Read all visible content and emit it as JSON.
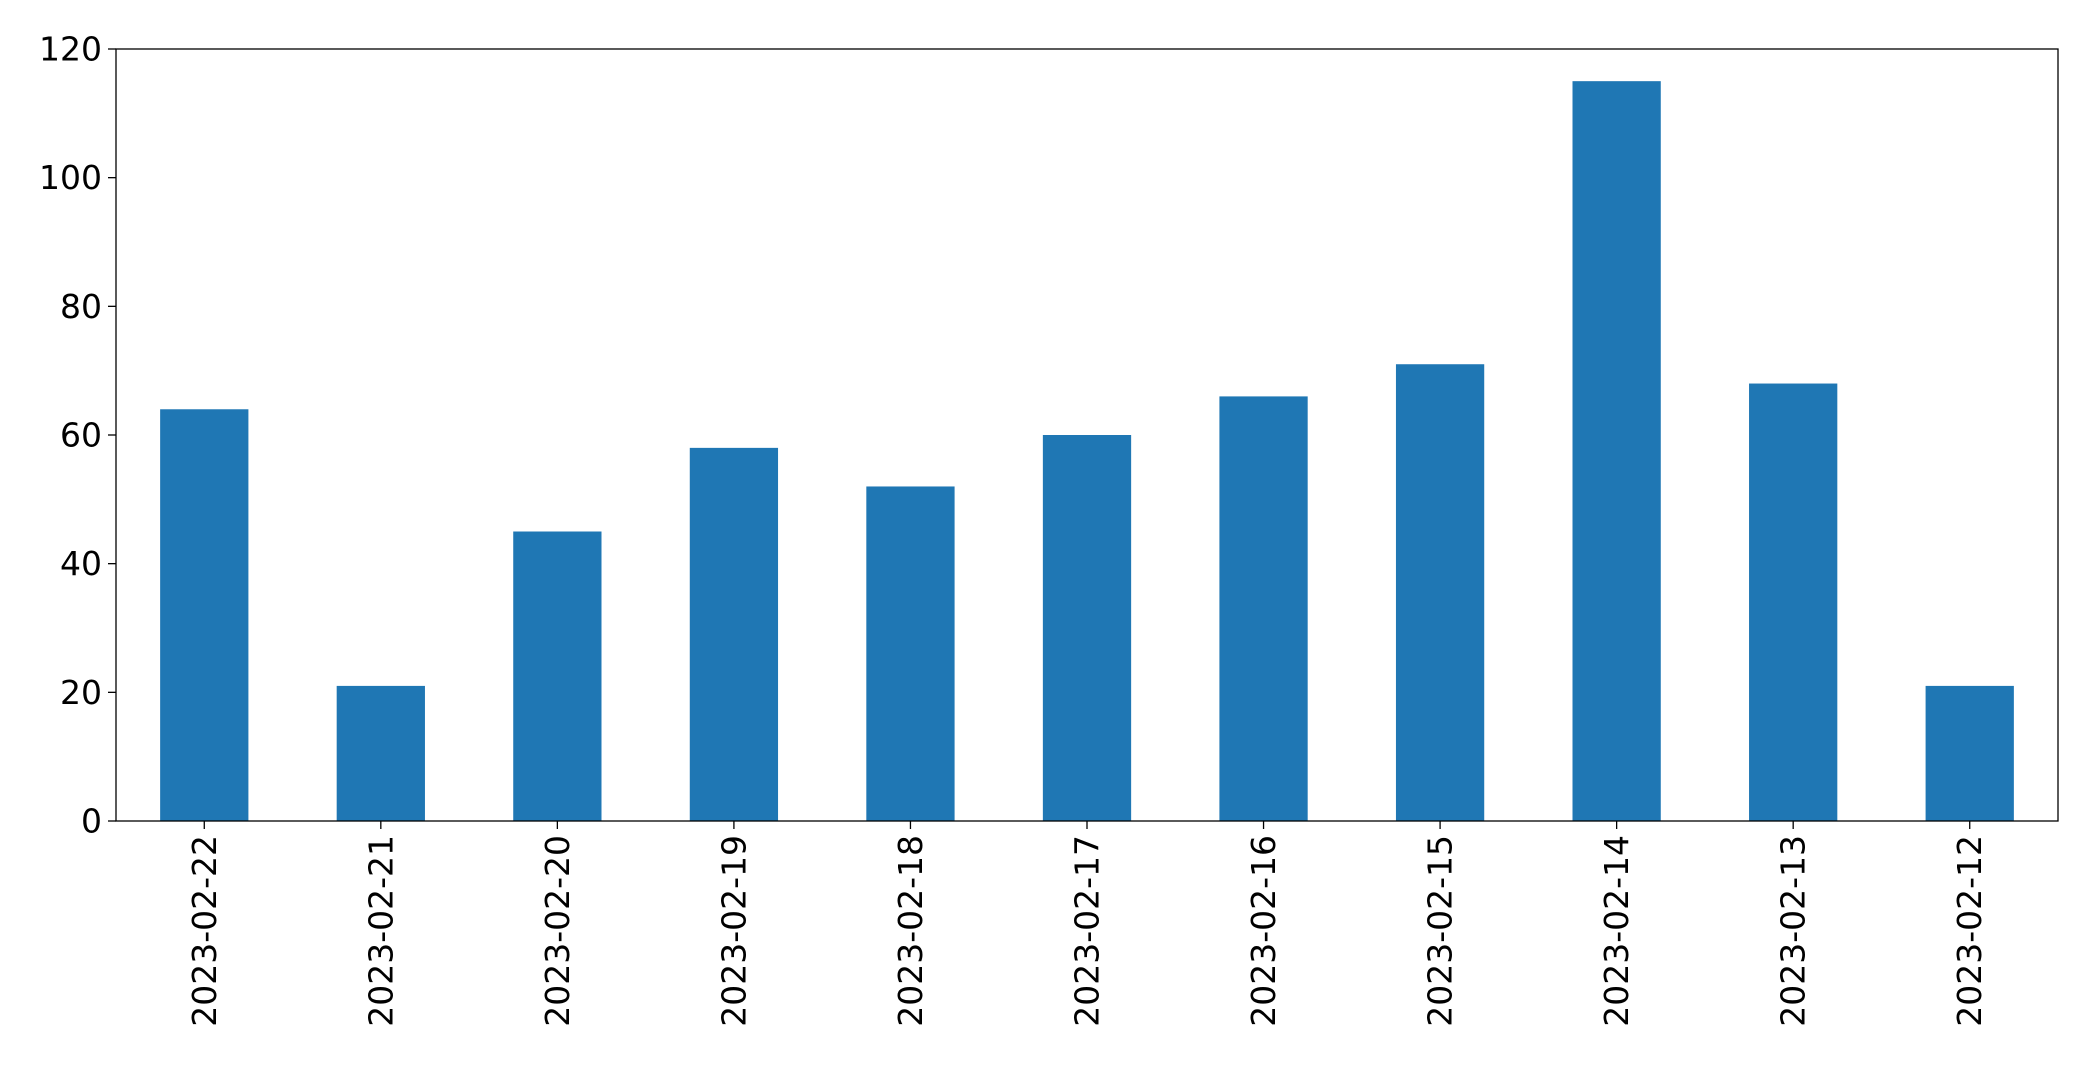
{
  "chart_data": {
    "type": "bar",
    "title": "",
    "xlabel": "",
    "ylabel": "",
    "categories": [
      "2023-02-22",
      "2023-02-21",
      "2023-02-20",
      "2023-02-19",
      "2023-02-18",
      "2023-02-17",
      "2023-02-16",
      "2023-02-15",
      "2023-02-14",
      "2023-02-13",
      "2023-02-12"
    ],
    "values": [
      64,
      21,
      45,
      58,
      52,
      60,
      66,
      71,
      115,
      68,
      21
    ],
    "ylim": [
      0,
      120
    ],
    "yticks": [
      0,
      20,
      40,
      60,
      80,
      100,
      120
    ],
    "grid": false,
    "legend": "none",
    "bar_color": "#1f77b4"
  }
}
